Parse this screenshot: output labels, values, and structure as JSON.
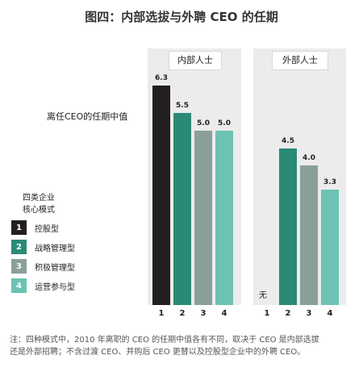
{
  "title": "图四：内部选拔与外聘 CEO 的任期",
  "metric_label": "离任CEO的任期中值",
  "legend": {
    "title_line1": "四类企业",
    "title_line2": "核心模式",
    "items": [
      {
        "num": "1",
        "label": "控股型",
        "color": "#231f20"
      },
      {
        "num": "2",
        "label": "战略管理型",
        "color": "#2b8a76"
      },
      {
        "num": "3",
        "label": "积极管理型",
        "color": "#8a9f9a"
      },
      {
        "num": "4",
        "label": "运营参与型",
        "color": "#6cc3b3"
      }
    ]
  },
  "none_label": "无",
  "footnote": {
    "line1": "注：四种模式中，2010 年离职的 CEO 的任期中值各有不同，取决于 CEO 是内部选拔",
    "line2": "还是外部招聘；不含过渡 CEO、并购后 CEO 更替以及控股型企业中的外聘 CEO。"
  },
  "chart_data": {
    "type": "bar",
    "title": "图四：内部选拔与外聘 CEO 的任期",
    "ylabel": "离任CEO的任期中值",
    "categories": [
      "1",
      "2",
      "3",
      "4"
    ],
    "series": [
      {
        "name": "内部人士",
        "values": [
          6.3,
          5.5,
          5.0,
          5.0
        ],
        "labels": [
          "6.3",
          "5.5",
          "5.0",
          "5.0"
        ]
      },
      {
        "name": "外部人士",
        "values": [
          null,
          4.5,
          4.0,
          3.3
        ],
        "labels": [
          "",
          "4.5",
          "4.0",
          "3.3"
        ]
      }
    ],
    "colors": [
      "#231f20",
      "#2b8a76",
      "#8a9f9a",
      "#6cc3b3"
    ],
    "ylim": [
      0,
      7
    ],
    "grid": false,
    "legend_placement": "left"
  }
}
